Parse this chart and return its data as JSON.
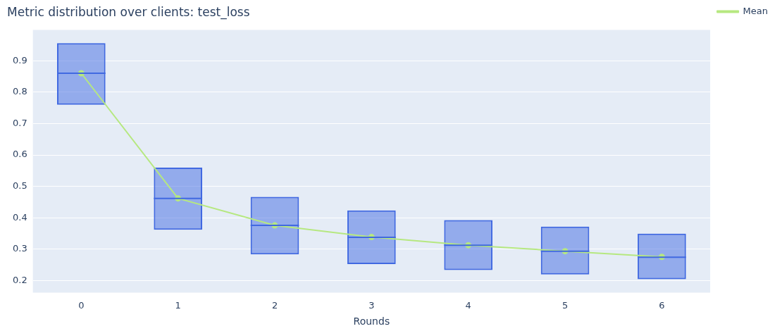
{
  "chart_data": {
    "type": "box",
    "title": "Metric distribution over clients: test_loss",
    "xlabel": "Rounds",
    "categories": [
      "0",
      "1",
      "2",
      "3",
      "4",
      "5",
      "6"
    ],
    "series": [
      {
        "color": "#4169e1",
        "boxes": [
          {
            "low": 0.76,
            "q1": 0.76,
            "median": 0.86,
            "q3": 0.956,
            "high": 0.956
          },
          {
            "low": 0.362,
            "q1": 0.362,
            "median": 0.462,
            "q3": 0.56,
            "high": 0.56
          },
          {
            "low": 0.284,
            "q1": 0.284,
            "median": 0.376,
            "q3": 0.467,
            "high": 0.467
          },
          {
            "low": 0.253,
            "q1": 0.253,
            "median": 0.338,
            "q3": 0.424,
            "high": 0.424
          },
          {
            "low": 0.234,
            "q1": 0.234,
            "median": 0.313,
            "q3": 0.393,
            "high": 0.393
          },
          {
            "low": 0.22,
            "q1": 0.22,
            "median": 0.294,
            "q3": 0.372,
            "high": 0.372
          },
          {
            "low": 0.205,
            "q1": 0.205,
            "median": 0.275,
            "q3": 0.35,
            "high": 0.35
          }
        ]
      },
      {
        "type": "line",
        "name": "Mean",
        "color": "#b6e880",
        "marker": "circle",
        "values": [
          0.86,
          0.462,
          0.376,
          0.339,
          0.313,
          0.294,
          0.276
        ]
      }
    ],
    "ylim": [
      0.162,
      0.998
    ],
    "yticks": [
      0.2,
      0.3,
      0.4,
      0.5,
      0.6,
      0.7,
      0.8,
      0.9
    ],
    "grid": "y",
    "legend": "top right"
  }
}
